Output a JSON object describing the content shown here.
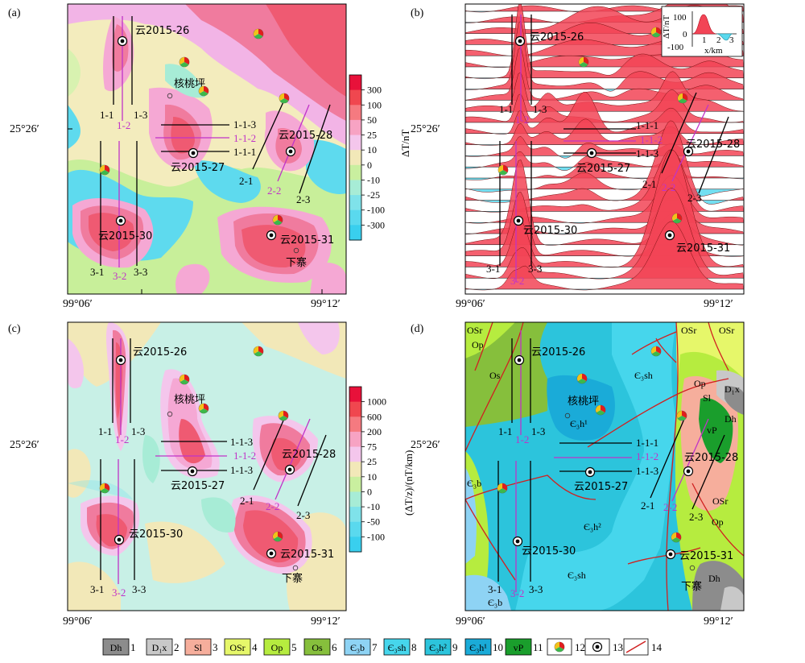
{
  "panels": [
    {
      "letter": "(a)",
      "x_min": "99°06′",
      "x_max": "99°12′",
      "y_tick": "25°26′"
    },
    {
      "letter": "(b)",
      "x_min": "99°06′",
      "x_max": "99°12′",
      "y_tick": "25°26′"
    },
    {
      "letter": "(c)",
      "x_min": "99°06′",
      "x_max": "99°12′",
      "y_tick": "25°26′"
    },
    {
      "letter": "(d)",
      "x_min": "99°06′",
      "x_max": "99°12′",
      "y_tick": "25°26′"
    }
  ],
  "colorbar_a": {
    "label": "ΔT/nT",
    "ticks": [
      "300",
      "100",
      "50",
      "25",
      "10",
      "0",
      "-10",
      "-25",
      "-100",
      "-300"
    ],
    "colors": [
      "#e8113a",
      "#f0474f",
      "#f57a80",
      "#f7a3c3",
      "#f4c6ec",
      "#f2e8b8",
      "#c9ef9f",
      "#a7ecd6",
      "#7fe2ea",
      "#5ad9ee",
      "#39cfee"
    ]
  },
  "colorbar_c": {
    "label": "(ΔT/z)/(nT/km)",
    "ticks": [
      "1000",
      "600",
      "200",
      "75",
      "25",
      "10",
      "0",
      "-10",
      "-50",
      "-100"
    ],
    "colors": [
      "#e8113a",
      "#f0474f",
      "#f57a80",
      "#f7a3c3",
      "#f4c6ec",
      "#f2e8b8",
      "#c9ef9f",
      "#a7ecd6",
      "#7fe2ea",
      "#5ad9ee",
      "#39cfee"
    ]
  },
  "inset_b": {
    "y_ticks": [
      "100",
      "0",
      "-100"
    ],
    "x_ticks": [
      "1",
      "2",
      "3"
    ],
    "y_label": "ΔT/nT",
    "x_label": "x/km"
  },
  "boreholes": [
    "云2015-26",
    "云2015-27",
    "云2015-28",
    "云2015-30",
    "云2015-31"
  ],
  "places": [
    "核桃坪",
    "下寨"
  ],
  "profiles": [
    "1-1",
    "1-2",
    "1-3",
    "1-1-1",
    "1-1-2",
    "1-1-3",
    "2-1",
    "2-2",
    "2-3",
    "3-1",
    "3-2",
    "3-3"
  ],
  "geology_labels": [
    "OSr",
    "OSr",
    "OSr",
    "Op",
    "Os",
    "Є₃sh",
    "Єlsx",
    "Sl",
    "D₁x",
    "Dh",
    "vP",
    "Є₃h¹",
    "Є₃h²",
    "Є₃b",
    "Є₃b",
    "Є₃sh",
    "OSr",
    "Op",
    "Dh"
  ],
  "legend": [
    {
      "code": "Dh",
      "num": "1",
      "color": "#8c8c8c"
    },
    {
      "code": "D₁x",
      "num": "2",
      "color": "#c8c8c8"
    },
    {
      "code": "Sl",
      "num": "3",
      "color": "#f6ae9c"
    },
    {
      "code": "OSr",
      "num": "4",
      "color": "#e6f76a"
    },
    {
      "code": "Op",
      "num": "5",
      "color": "#b6ec3f"
    },
    {
      "code": "Os",
      "num": "6",
      "color": "#86bf3c"
    },
    {
      "code": "Є₃b",
      "num": "7",
      "color": "#8ed3f4"
    },
    {
      "code": "Є₃sh",
      "num": "8",
      "color": "#46d6ec"
    },
    {
      "code": "Є₃h²",
      "num": "9",
      "color": "#2cc4dc"
    },
    {
      "code": "Є₃h¹",
      "num": "10",
      "color": "#1aabd8"
    },
    {
      "code": "vP",
      "num": "11",
      "color": "#1a9e2c"
    },
    {
      "code": "",
      "num": "12",
      "color": "magnetic-anomaly-icon"
    },
    {
      "code": "",
      "num": "13",
      "color": "borehole-icon"
    },
    {
      "code": "",
      "num": "14",
      "color": "fault-line-icon"
    }
  ]
}
